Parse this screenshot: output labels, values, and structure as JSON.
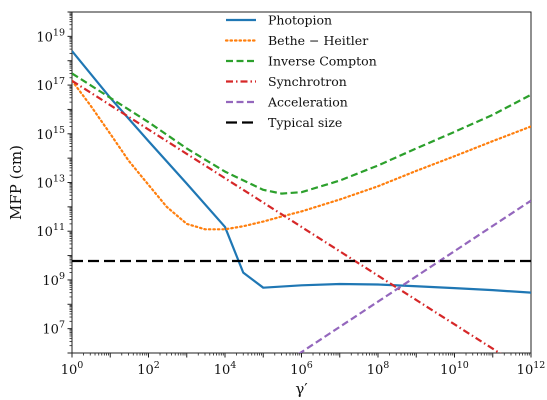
{
  "chart_data": {
    "type": "line",
    "title": "",
    "xlabel": "γ′",
    "ylabel": "MFP (cm)",
    "xscale": "log",
    "yscale": "log",
    "xlim": [
      1,
      1000000000000.0
    ],
    "ylim": [
      1000000.0,
      1e+20
    ],
    "xticks": [
      {
        "value": 1,
        "base": "10",
        "exp": "0"
      },
      {
        "value": 100,
        "base": "10",
        "exp": "2"
      },
      {
        "value": 10000,
        "base": "10",
        "exp": "4"
      },
      {
        "value": 1000000,
        "base": "10",
        "exp": "6"
      },
      {
        "value": 100000000,
        "base": "10",
        "exp": "8"
      },
      {
        "value": 10000000000,
        "base": "10",
        "exp": "10"
      },
      {
        "value": 1000000000000,
        "base": "10",
        "exp": "12"
      }
    ],
    "yticks": [
      {
        "value": 10000000,
        "base": "10",
        "exp": "7"
      },
      {
        "value": 1000000000,
        "base": "10",
        "exp": "9"
      },
      {
        "value": 100000000000,
        "base": "10",
        "exp": "11"
      },
      {
        "value": 10000000000000,
        "base": "10",
        "exp": "13"
      },
      {
        "value": 1000000000000000,
        "base": "10",
        "exp": "15"
      },
      {
        "value": 100000000000000000,
        "base": "10",
        "exp": "17"
      },
      {
        "value": 10000000000000000000,
        "base": "10",
        "exp": "19"
      }
    ],
    "grid": false,
    "legend_position": "top-center",
    "series": [
      {
        "name": "Photopion",
        "color": "#1f77b4",
        "dash": "solid",
        "x": [
          1,
          10,
          100,
          1000,
          10000,
          30000,
          100000,
          1000000,
          10000000,
          100000000,
          1000000000,
          10000000000,
          100000000000,
          1000000000000
        ],
        "y": [
          2.5e+18,
          3e+16,
          500000000000000.0,
          9000000000000.0,
          150000000000.0,
          2000000000.0,
          480000000.0,
          600000000.0,
          680000000.0,
          650000000.0,
          550000000.0,
          460000000.0,
          380000000.0,
          300000000.0
        ]
      },
      {
        "name": "Bethe − Heitler",
        "color": "#ff7f0e",
        "dash": "dotted",
        "x": [
          1,
          3,
          10,
          30,
          100,
          300,
          1000,
          3000,
          10000,
          30000,
          100000,
          300000,
          1000000,
          10000000,
          100000000,
          1000000000,
          10000000000,
          100000000000,
          1000000000000
        ],
        "y": [
          1.5e+17,
          1.5e+16,
          1000000000000000.0,
          80000000000000.0,
          8000000000000.0,
          1000000000000.0,
          200000000000.0,
          120000000000.0,
          120000000000.0,
          160000000000.0,
          250000000000.0,
          400000000000.0,
          650000000000.0,
          2000000000000.0,
          7000000000000.0,
          30000000000000.0,
          120000000000000.0,
          500000000000000.0,
          2000000000000000.0
        ]
      },
      {
        "name": "Inverse Compton",
        "color": "#2ca02c",
        "dash": "dashed",
        "x": [
          1,
          10,
          100,
          1000,
          10000,
          100000,
          300000,
          1000000,
          10000000,
          100000000,
          1000000000,
          10000000000,
          100000000000,
          1000000000000
        ],
        "y": [
          3e+17,
          3e+16,
          3000000000000000.0,
          250000000000000.0,
          28000000000000.0,
          5000000000000.0,
          3500000000000.0,
          4000000000000.0,
          12000000000000.0,
          50000000000000.0,
          250000000000000.0,
          1200000000000000.0,
          6000000000000000.0,
          4e+16
        ]
      },
      {
        "name": "Synchrotron",
        "color": "#d62728",
        "dash": "dashdot",
        "x": [
          1,
          1000000000000
        ],
        "y": [
          1.5e+17,
          150000.0
        ]
      },
      {
        "name": "Acceleration",
        "color": "#9467bd",
        "dash": "dashed",
        "x": [
          100000,
          1000000000000
        ],
        "y": [
          100000.0,
          1800000000000.0
        ]
      },
      {
        "name": "Typical size",
        "color": "#000000",
        "dash": "longdash",
        "x": [
          1,
          1000000000000
        ],
        "y": [
          6000000000.0,
          6000000000.0
        ]
      }
    ]
  }
}
